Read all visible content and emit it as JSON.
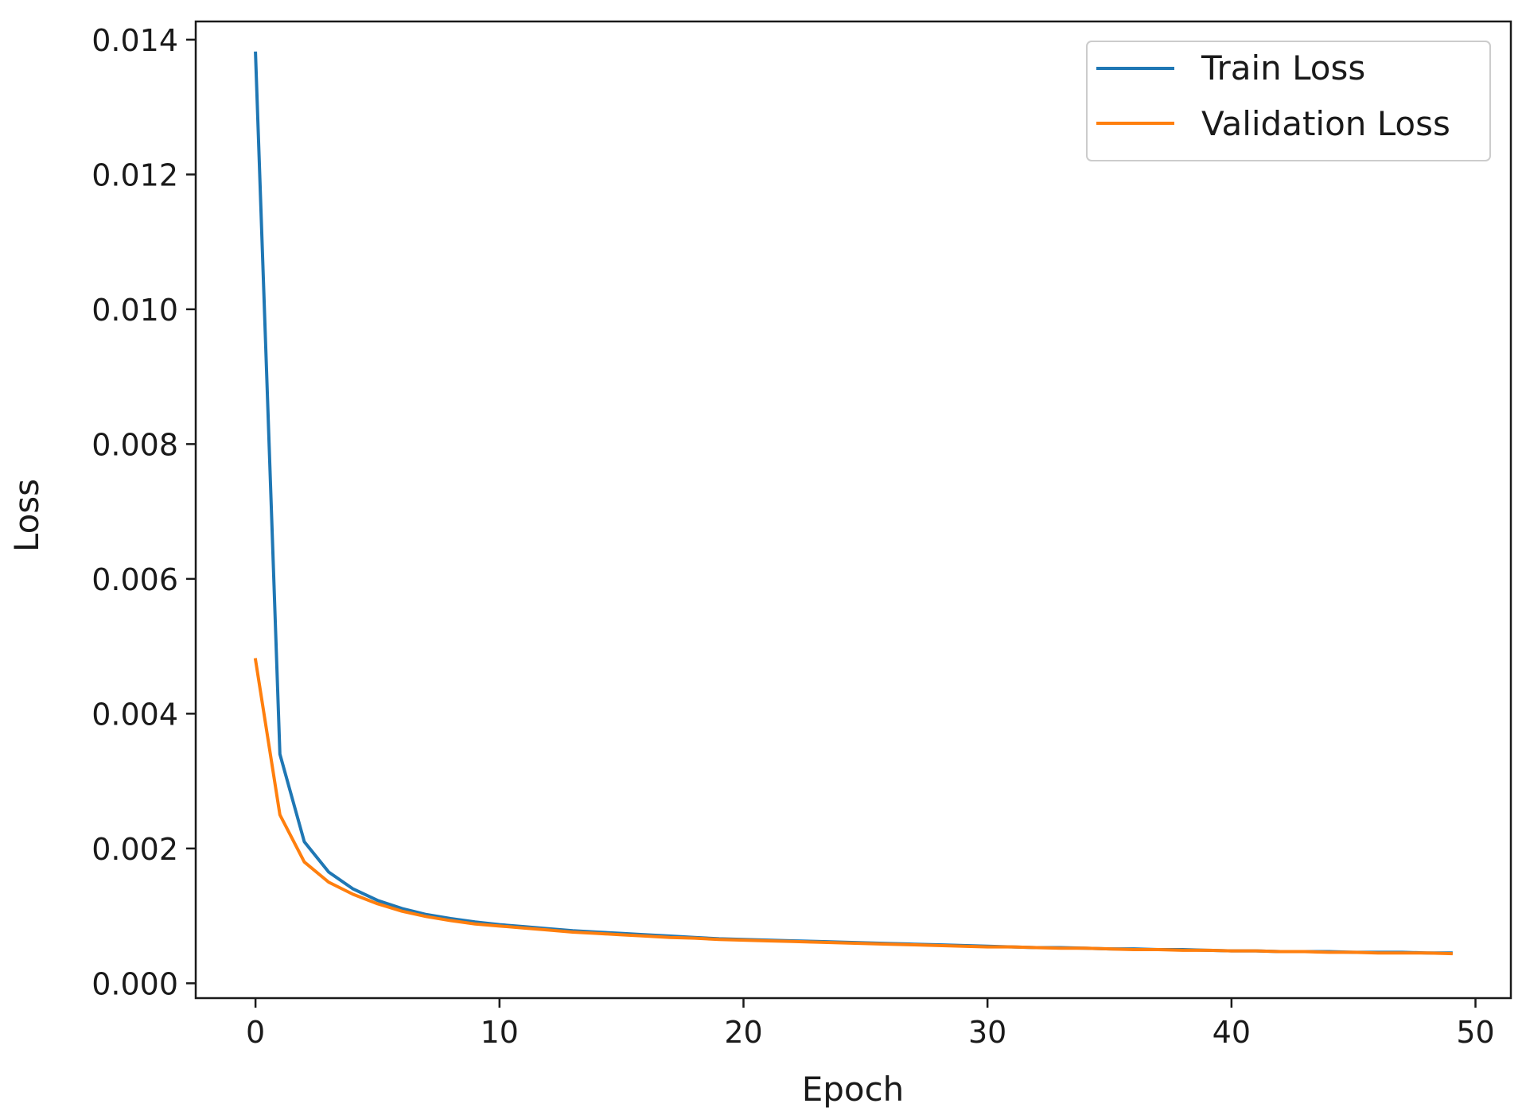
{
  "chart_data": {
    "type": "line",
    "title": "",
    "xlabel": "Epoch",
    "ylabel": "Loss",
    "xlim": [
      -2.45,
      51.45
    ],
    "ylim": [
      -0.00022,
      0.01427
    ],
    "xticks": [
      0,
      10,
      20,
      30,
      40,
      50
    ],
    "xtick_labels": [
      "0",
      "10",
      "20",
      "30",
      "40",
      "50"
    ],
    "yticks": [
      0.0,
      0.002,
      0.004,
      0.006,
      0.008,
      0.01,
      0.012,
      0.014
    ],
    "ytick_labels": [
      "0.000",
      "0.002",
      "0.004",
      "0.006",
      "0.008",
      "0.010",
      "0.012",
      "0.014"
    ],
    "grid": false,
    "legend_position": "top-right",
    "x": [
      0,
      1,
      2,
      3,
      4,
      5,
      6,
      7,
      8,
      9,
      10,
      11,
      12,
      13,
      14,
      15,
      16,
      17,
      18,
      19,
      20,
      21,
      22,
      23,
      24,
      25,
      26,
      27,
      28,
      29,
      30,
      31,
      32,
      33,
      34,
      35,
      36,
      37,
      38,
      39,
      40,
      41,
      42,
      43,
      44,
      45,
      46,
      47,
      48,
      49
    ],
    "series": [
      {
        "name": "Train Loss",
        "color": "#1f77b4",
        "values": [
          0.0138,
          0.0034,
          0.0021,
          0.00165,
          0.0014,
          0.00123,
          0.00111,
          0.00102,
          0.00096,
          0.00091,
          0.00087,
          0.00084,
          0.00081,
          0.00078,
          0.00076,
          0.00074,
          0.00072,
          0.0007,
          0.00068,
          0.00066,
          0.00065,
          0.00064,
          0.00063,
          0.00062,
          0.00061,
          0.0006,
          0.00059,
          0.00058,
          0.00057,
          0.00056,
          0.00055,
          0.00054,
          0.00053,
          0.00053,
          0.00052,
          0.00051,
          0.00051,
          0.0005,
          0.0005,
          0.00049,
          0.00048,
          0.00048,
          0.00047,
          0.00047,
          0.00047,
          0.00046,
          0.00046,
          0.00046,
          0.00045,
          0.00045
        ]
      },
      {
        "name": "Validation Loss",
        "color": "#ff7f0e",
        "values": [
          0.0048,
          0.0025,
          0.0018,
          0.0015,
          0.00132,
          0.00118,
          0.00107,
          0.00099,
          0.00093,
          0.00088,
          0.00085,
          0.00082,
          0.00079,
          0.00076,
          0.00074,
          0.00072,
          0.0007,
          0.00068,
          0.00067,
          0.00065,
          0.00064,
          0.00063,
          0.00062,
          0.00061,
          0.0006,
          0.00059,
          0.00058,
          0.00057,
          0.00056,
          0.00055,
          0.00054,
          0.00054,
          0.00053,
          0.00052,
          0.00052,
          0.00051,
          0.0005,
          0.0005,
          0.00049,
          0.00049,
          0.00048,
          0.00048,
          0.00047,
          0.00047,
          0.00046,
          0.00046,
          0.00045,
          0.00045,
          0.00045,
          0.00044
        ]
      }
    ]
  }
}
